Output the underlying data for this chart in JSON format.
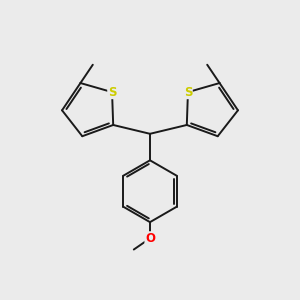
{
  "bg_color": "#ebebeb",
  "bond_color": "#1a1a1a",
  "S_color": "#cccc00",
  "O_color": "#ff0000",
  "C_color": "#1a1a1a",
  "bond_width": 1.4,
  "fig_size": [
    3.0,
    3.0
  ],
  "dpi": 100,
  "xlim": [
    0,
    10
  ],
  "ylim": [
    0,
    10
  ]
}
